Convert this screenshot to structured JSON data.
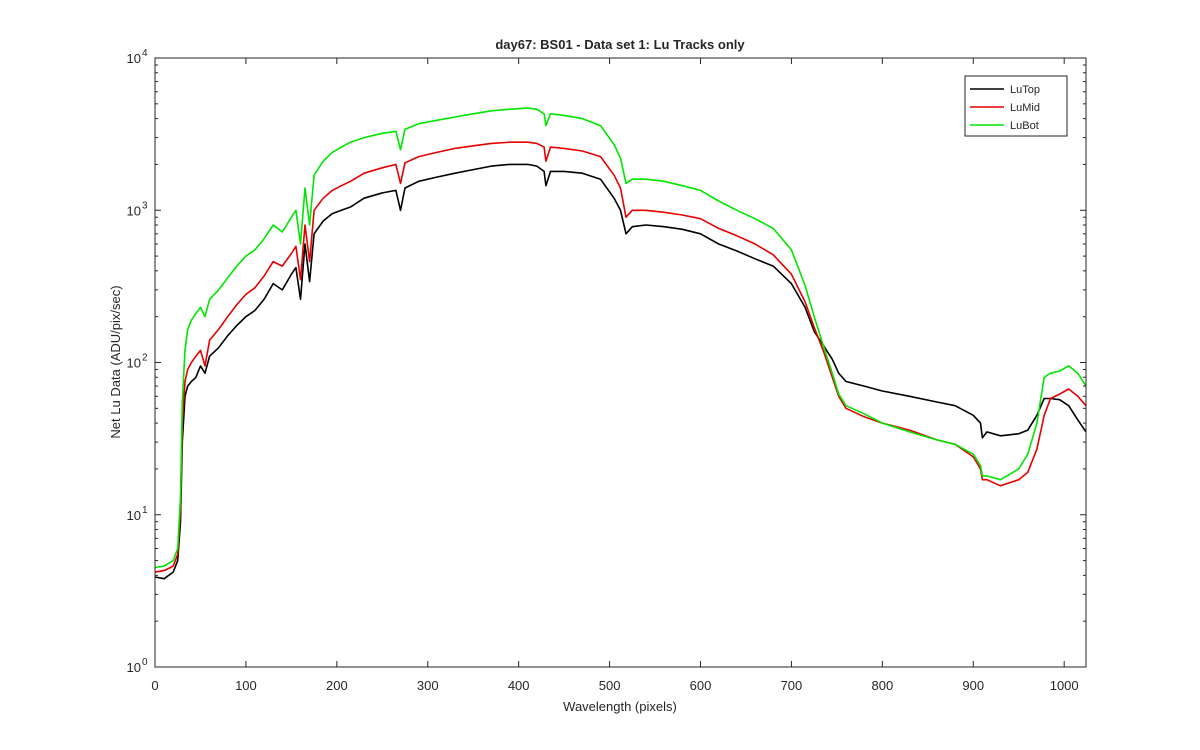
{
  "chart_data": {
    "type": "line",
    "title": "day67: BS01 - Data set 1: Lu Tracks only",
    "xlabel": "Wavelength (pixels)",
    "ylabel": "Net Lu Data (ADU/pix/sec)",
    "xlim": [
      0,
      1024
    ],
    "ylim": [
      1,
      10000
    ],
    "yscale": "log",
    "xticks": [
      0,
      100,
      200,
      300,
      400,
      500,
      600,
      700,
      800,
      900,
      1000
    ],
    "yticks": [
      {
        "value": 1,
        "base": "10",
        "exp": "0"
      },
      {
        "value": 10,
        "base": "10",
        "exp": "1"
      },
      {
        "value": 100,
        "base": "10",
        "exp": "2"
      },
      {
        "value": 1000,
        "base": "10",
        "exp": "3"
      },
      {
        "value": 10000,
        "base": "10",
        "exp": "4"
      }
    ],
    "grid": false,
    "legend_position": "top-right",
    "series": [
      {
        "name": "LuTop",
        "color": "#000000",
        "points": [
          [
            0,
            3.9
          ],
          [
            10,
            3.8
          ],
          [
            20,
            4.2
          ],
          [
            25,
            5
          ],
          [
            28,
            9
          ],
          [
            30,
            30
          ],
          [
            33,
            60
          ],
          [
            36,
            70
          ],
          [
            40,
            75
          ],
          [
            45,
            80
          ],
          [
            50,
            95
          ],
          [
            55,
            85
          ],
          [
            60,
            110
          ],
          [
            70,
            125
          ],
          [
            80,
            150
          ],
          [
            90,
            175
          ],
          [
            100,
            200
          ],
          [
            110,
            220
          ],
          [
            120,
            260
          ],
          [
            130,
            330
          ],
          [
            140,
            300
          ],
          [
            150,
            380
          ],
          [
            155,
            420
          ],
          [
            160,
            260
          ],
          [
            165,
            600
          ],
          [
            170,
            340
          ],
          [
            175,
            700
          ],
          [
            185,
            850
          ],
          [
            195,
            950
          ],
          [
            205,
            1000
          ],
          [
            215,
            1050
          ],
          [
            230,
            1200
          ],
          [
            250,
            1300
          ],
          [
            265,
            1350
          ],
          [
            270,
            1000
          ],
          [
            275,
            1400
          ],
          [
            290,
            1550
          ],
          [
            310,
            1650
          ],
          [
            330,
            1750
          ],
          [
            350,
            1850
          ],
          [
            370,
            1950
          ],
          [
            390,
            2000
          ],
          [
            410,
            2000
          ],
          [
            420,
            1950
          ],
          [
            428,
            1800
          ],
          [
            430,
            1450
          ],
          [
            435,
            1800
          ],
          [
            450,
            1800
          ],
          [
            470,
            1750
          ],
          [
            490,
            1600
          ],
          [
            505,
            1200
          ],
          [
            512,
            1000
          ],
          [
            518,
            700
          ],
          [
            525,
            780
          ],
          [
            540,
            800
          ],
          [
            560,
            780
          ],
          [
            580,
            750
          ],
          [
            600,
            700
          ],
          [
            620,
            600
          ],
          [
            640,
            540
          ],
          [
            660,
            480
          ],
          [
            680,
            430
          ],
          [
            700,
            330
          ],
          [
            715,
            230
          ],
          [
            725,
            160
          ],
          [
            735,
            130
          ],
          [
            745,
            105
          ],
          [
            752,
            85
          ],
          [
            760,
            75
          ],
          [
            780,
            70
          ],
          [
            800,
            65
          ],
          [
            830,
            60
          ],
          [
            860,
            55
          ],
          [
            880,
            52
          ],
          [
            900,
            45
          ],
          [
            908,
            40
          ],
          [
            910,
            32
          ],
          [
            915,
            35
          ],
          [
            930,
            33
          ],
          [
            950,
            34
          ],
          [
            960,
            36
          ],
          [
            970,
            45
          ],
          [
            978,
            58
          ],
          [
            985,
            58
          ],
          [
            995,
            57
          ],
          [
            1005,
            52
          ],
          [
            1015,
            42
          ],
          [
            1024,
            35
          ]
        ]
      },
      {
        "name": "LuMid",
        "color": "#e60000",
        "points": [
          [
            0,
            4.2
          ],
          [
            10,
            4.3
          ],
          [
            20,
            4.6
          ],
          [
            25,
            5.5
          ],
          [
            28,
            11
          ],
          [
            30,
            40
          ],
          [
            33,
            75
          ],
          [
            36,
            90
          ],
          [
            40,
            100
          ],
          [
            45,
            110
          ],
          [
            50,
            120
          ],
          [
            55,
            95
          ],
          [
            60,
            140
          ],
          [
            70,
            165
          ],
          [
            80,
            200
          ],
          [
            90,
            240
          ],
          [
            100,
            280
          ],
          [
            110,
            310
          ],
          [
            120,
            370
          ],
          [
            130,
            460
          ],
          [
            140,
            430
          ],
          [
            150,
            520
          ],
          [
            155,
            580
          ],
          [
            160,
            350
          ],
          [
            165,
            800
          ],
          [
            170,
            460
          ],
          [
            175,
            1000
          ],
          [
            185,
            1200
          ],
          [
            195,
            1350
          ],
          [
            205,
            1450
          ],
          [
            215,
            1550
          ],
          [
            230,
            1750
          ],
          [
            250,
            1900
          ],
          [
            265,
            2000
          ],
          [
            270,
            1500
          ],
          [
            275,
            2050
          ],
          [
            290,
            2250
          ],
          [
            310,
            2400
          ],
          [
            330,
            2550
          ],
          [
            350,
            2650
          ],
          [
            370,
            2750
          ],
          [
            390,
            2800
          ],
          [
            410,
            2800
          ],
          [
            420,
            2750
          ],
          [
            428,
            2600
          ],
          [
            430,
            2100
          ],
          [
            435,
            2600
          ],
          [
            450,
            2550
          ],
          [
            470,
            2450
          ],
          [
            490,
            2250
          ],
          [
            505,
            1700
          ],
          [
            512,
            1400
          ],
          [
            518,
            900
          ],
          [
            525,
            1000
          ],
          [
            540,
            1000
          ],
          [
            560,
            970
          ],
          [
            580,
            930
          ],
          [
            600,
            880
          ],
          [
            620,
            760
          ],
          [
            640,
            680
          ],
          [
            660,
            600
          ],
          [
            680,
            510
          ],
          [
            700,
            380
          ],
          [
            715,
            250
          ],
          [
            725,
            170
          ],
          [
            735,
            120
          ],
          [
            745,
            80
          ],
          [
            752,
            60
          ],
          [
            760,
            50
          ],
          [
            780,
            44
          ],
          [
            800,
            40
          ],
          [
            830,
            36
          ],
          [
            860,
            31
          ],
          [
            880,
            29
          ],
          [
            900,
            24
          ],
          [
            908,
            20
          ],
          [
            910,
            17
          ],
          [
            915,
            17
          ],
          [
            930,
            15.5
          ],
          [
            950,
            17
          ],
          [
            960,
            19
          ],
          [
            970,
            27
          ],
          [
            978,
            45
          ],
          [
            985,
            58
          ],
          [
            995,
            62
          ],
          [
            1005,
            67
          ],
          [
            1015,
            60
          ],
          [
            1024,
            52
          ]
        ]
      },
      {
        "name": "LuBot",
        "color": "#00e600",
        "points": [
          [
            0,
            4.5
          ],
          [
            10,
            4.6
          ],
          [
            20,
            5
          ],
          [
            25,
            6
          ],
          [
            28,
            13
          ],
          [
            30,
            55
          ],
          [
            33,
            120
          ],
          [
            36,
            165
          ],
          [
            40,
            190
          ],
          [
            45,
            210
          ],
          [
            50,
            230
          ],
          [
            55,
            200
          ],
          [
            60,
            260
          ],
          [
            70,
            300
          ],
          [
            80,
            360
          ],
          [
            90,
            430
          ],
          [
            100,
            500
          ],
          [
            110,
            550
          ],
          [
            120,
            650
          ],
          [
            130,
            800
          ],
          [
            140,
            720
          ],
          [
            150,
            900
          ],
          [
            155,
            1000
          ],
          [
            160,
            600
          ],
          [
            165,
            1400
          ],
          [
            170,
            800
          ],
          [
            175,
            1700
          ],
          [
            185,
            2100
          ],
          [
            195,
            2400
          ],
          [
            205,
            2600
          ],
          [
            215,
            2800
          ],
          [
            230,
            3000
          ],
          [
            250,
            3200
          ],
          [
            265,
            3300
          ],
          [
            270,
            2500
          ],
          [
            275,
            3400
          ],
          [
            290,
            3700
          ],
          [
            310,
            3900
          ],
          [
            330,
            4100
          ],
          [
            350,
            4300
          ],
          [
            370,
            4500
          ],
          [
            390,
            4600
          ],
          [
            410,
            4700
          ],
          [
            420,
            4600
          ],
          [
            428,
            4300
          ],
          [
            430,
            3600
          ],
          [
            435,
            4300
          ],
          [
            450,
            4200
          ],
          [
            470,
            4000
          ],
          [
            490,
            3600
          ],
          [
            505,
            2700
          ],
          [
            512,
            2200
          ],
          [
            518,
            1500
          ],
          [
            525,
            1600
          ],
          [
            540,
            1600
          ],
          [
            560,
            1550
          ],
          [
            580,
            1450
          ],
          [
            600,
            1350
          ],
          [
            620,
            1150
          ],
          [
            640,
            1000
          ],
          [
            660,
            880
          ],
          [
            680,
            760
          ],
          [
            700,
            550
          ],
          [
            715,
            320
          ],
          [
            725,
            200
          ],
          [
            735,
            130
          ],
          [
            745,
            85
          ],
          [
            752,
            62
          ],
          [
            760,
            52
          ],
          [
            780,
            46
          ],
          [
            800,
            40
          ],
          [
            830,
            35
          ],
          [
            860,
            31
          ],
          [
            880,
            29
          ],
          [
            900,
            25
          ],
          [
            908,
            21
          ],
          [
            910,
            18
          ],
          [
            915,
            18
          ],
          [
            930,
            17
          ],
          [
            950,
            20
          ],
          [
            960,
            25
          ],
          [
            970,
            40
          ],
          [
            978,
            80
          ],
          [
            985,
            85
          ],
          [
            995,
            88
          ],
          [
            1005,
            95
          ],
          [
            1015,
            85
          ],
          [
            1024,
            70
          ]
        ]
      }
    ]
  }
}
